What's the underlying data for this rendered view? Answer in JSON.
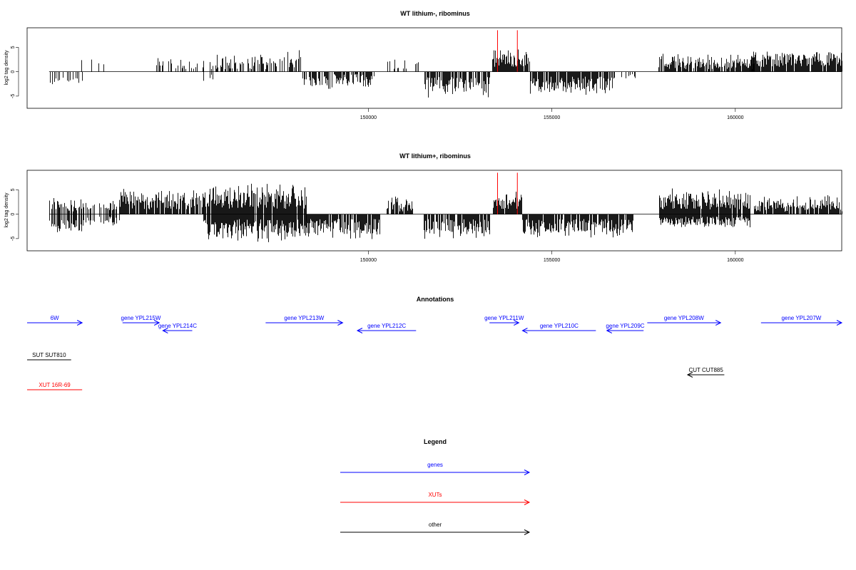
{
  "colors": {
    "gene": "#0000ff",
    "xut": "#ff0000",
    "other": "#000000",
    "highlight": "#ff0000"
  },
  "chart_data": [
    {
      "type": "bar",
      "title": "WT lithium-, ribominus",
      "ylabel": "log2 tag density",
      "xlabel": "",
      "xlim": [
        140700,
        162900
      ],
      "ylim": [
        -7.5,
        9
      ],
      "xticks": [
        150000,
        155000,
        160000
      ],
      "yticks": [
        -5,
        0,
        5
      ],
      "grid": false,
      "highlight_x": [
        153520,
        154060
      ],
      "highlight_height": 8.5,
      "regions": [
        {
          "x0": 141300,
          "x1": 142200,
          "pos_min": 0,
          "pos_max": 0,
          "neg_min": 1,
          "neg_max": 3,
          "density": 0.35
        },
        {
          "x0": 142000,
          "x1": 143000,
          "pos_min": 1,
          "pos_max": 3.5,
          "neg_min": 0,
          "neg_max": 0,
          "density": 0.1
        },
        {
          "x0": 143000,
          "x1": 144200,
          "pos_min": 0,
          "pos_max": 0,
          "neg_min": 0,
          "neg_max": 0,
          "density": 0
        },
        {
          "x0": 144200,
          "x1": 145500,
          "pos_min": 0.5,
          "pos_max": 3,
          "neg_min": 0,
          "neg_max": 0,
          "density": 0.45
        },
        {
          "x0": 145500,
          "x1": 145800,
          "pos_min": 0.5,
          "pos_max": 3,
          "neg_min": 0.5,
          "neg_max": 2,
          "density": 0.5
        },
        {
          "x0": 145800,
          "x1": 148200,
          "pos_min": 0.5,
          "pos_max": 4.5,
          "neg_min": 0,
          "neg_max": 0,
          "density": 0.55
        },
        {
          "x0": 148200,
          "x1": 150200,
          "pos_min": 0,
          "pos_max": 0,
          "neg_min": 0.5,
          "neg_max": 4,
          "density": 0.7
        },
        {
          "x0": 150500,
          "x1": 151400,
          "pos_min": 0.5,
          "pos_max": 3.5,
          "neg_min": 0,
          "neg_max": 0,
          "density": 0.25
        },
        {
          "x0": 151500,
          "x1": 153300,
          "pos_min": 0,
          "pos_max": 0,
          "neg_min": 1,
          "neg_max": 5.5,
          "density": 0.8
        },
        {
          "x0": 153380,
          "x1": 154400,
          "pos_min": 1,
          "pos_max": 5,
          "neg_min": 0,
          "neg_max": 0,
          "density": 0.95
        },
        {
          "x0": 154400,
          "x1": 156700,
          "pos_min": 0,
          "pos_max": 0,
          "neg_min": 1,
          "neg_max": 5,
          "density": 0.85
        },
        {
          "x0": 156800,
          "x1": 157300,
          "pos_min": 0,
          "pos_max": 0,
          "neg_min": 0.5,
          "neg_max": 2,
          "density": 0.15
        },
        {
          "x0": 157900,
          "x1": 160500,
          "pos_min": 0.5,
          "pos_max": 4,
          "neg_min": 0,
          "neg_max": 0,
          "density": 0.85
        },
        {
          "x0": 160400,
          "x1": 162900,
          "pos_min": 1,
          "pos_max": 4.5,
          "neg_min": 0,
          "neg_max": 0,
          "density": 0.95
        }
      ]
    },
    {
      "type": "bar",
      "title": "WT lithium+, ribominus",
      "ylabel": "log2 tag density",
      "xlabel": "",
      "xlim": [
        140700,
        162900
      ],
      "ylim": [
        -7.5,
        9
      ],
      "xticks": [
        150000,
        155000,
        160000
      ],
      "yticks": [
        -5,
        0,
        5
      ],
      "grid": false,
      "highlight_x": [
        153520,
        154060
      ],
      "highlight_height": 8.5,
      "regions": [
        {
          "x0": 141300,
          "x1": 142200,
          "pos_min": 0.5,
          "pos_max": 3.5,
          "neg_min": 1,
          "neg_max": 4,
          "density": 0.75
        },
        {
          "x0": 142200,
          "x1": 143200,
          "pos_min": 0.5,
          "pos_max": 3,
          "neg_min": 0.5,
          "neg_max": 2.5,
          "density": 0.5
        },
        {
          "x0": 143200,
          "x1": 145500,
          "pos_min": 1,
          "pos_max": 5.5,
          "neg_min": 0,
          "neg_max": 0,
          "density": 0.85
        },
        {
          "x0": 145500,
          "x1": 148300,
          "pos_min": 1,
          "pos_max": 6.5,
          "neg_min": 1,
          "neg_max": 6,
          "density": 0.95
        },
        {
          "x0": 148300,
          "x1": 150300,
          "pos_min": 0,
          "pos_max": 0,
          "neg_min": 1,
          "neg_max": 5.5,
          "density": 0.9
        },
        {
          "x0": 150500,
          "x1": 151200,
          "pos_min": 0.5,
          "pos_max": 4,
          "neg_min": 0,
          "neg_max": 0,
          "density": 0.8
        },
        {
          "x0": 151500,
          "x1": 153300,
          "pos_min": 0,
          "pos_max": 0,
          "neg_min": 1,
          "neg_max": 5.5,
          "density": 0.85
        },
        {
          "x0": 153380,
          "x1": 154200,
          "pos_min": 1,
          "pos_max": 5.5,
          "neg_min": 0,
          "neg_max": 0,
          "density": 0.95
        },
        {
          "x0": 154200,
          "x1": 157200,
          "pos_min": 0,
          "pos_max": 0,
          "neg_min": 1,
          "neg_max": 5,
          "density": 0.9
        },
        {
          "x0": 157900,
          "x1": 160400,
          "pos_min": 1,
          "pos_max": 5.5,
          "neg_min": 0.5,
          "neg_max": 3,
          "density": 0.95
        },
        {
          "x0": 160500,
          "x1": 162900,
          "pos_min": 0.5,
          "pos_max": 4,
          "neg_min": 0,
          "neg_max": 0,
          "density": 0.9
        }
      ]
    }
  ],
  "annotations": {
    "title": "Annotations",
    "features": [
      {
        "label": "6W",
        "kind": "gene",
        "start": 140700,
        "end": 142200,
        "dir": "right",
        "row": 0
      },
      {
        "label": "gene YPL215W",
        "kind": "gene",
        "start": 143300,
        "end": 144300,
        "dir": "right",
        "row": 0
      },
      {
        "label": "gene YPL214C",
        "kind": "gene",
        "start": 144400,
        "end": 145200,
        "dir": "left",
        "row": 1
      },
      {
        "label": "gene YPL213W",
        "kind": "gene",
        "start": 147200,
        "end": 149300,
        "dir": "right",
        "row": 0
      },
      {
        "label": "gene YPL212C",
        "kind": "gene",
        "start": 149700,
        "end": 151300,
        "dir": "left",
        "row": 1
      },
      {
        "label": "gene YPL211W",
        "kind": "gene",
        "start": 153300,
        "end": 154100,
        "dir": "right",
        "row": 0
      },
      {
        "label": "gene YPL210C",
        "kind": "gene",
        "start": 154200,
        "end": 156200,
        "dir": "left",
        "row": 1
      },
      {
        "label": "gene YPL209C",
        "kind": "gene",
        "start": 156500,
        "end": 157500,
        "dir": "left",
        "row": 1
      },
      {
        "label": "gene YPL208W",
        "kind": "gene",
        "start": 157600,
        "end": 159600,
        "dir": "right",
        "row": 0
      },
      {
        "label": "gene YPL207W",
        "kind": "gene",
        "start": 160700,
        "end": 162900,
        "dir": "right",
        "row": 0
      },
      {
        "label": "SUT SUT810",
        "kind": "other",
        "start": 140700,
        "end": 141900,
        "dir": "none",
        "row": 2
      },
      {
        "label": "CUT CUT885",
        "kind": "other",
        "start": 158700,
        "end": 159700,
        "dir": "left",
        "row": 3
      },
      {
        "label": "XUT 16R-69",
        "kind": "xut",
        "start": 140700,
        "end": 142200,
        "dir": "none",
        "row": 4
      }
    ]
  },
  "legend": {
    "title": "Legend",
    "items": [
      {
        "label": "genes",
        "kind": "gene"
      },
      {
        "label": "XUTs",
        "kind": "xut"
      },
      {
        "label": "other",
        "kind": "other"
      }
    ]
  }
}
